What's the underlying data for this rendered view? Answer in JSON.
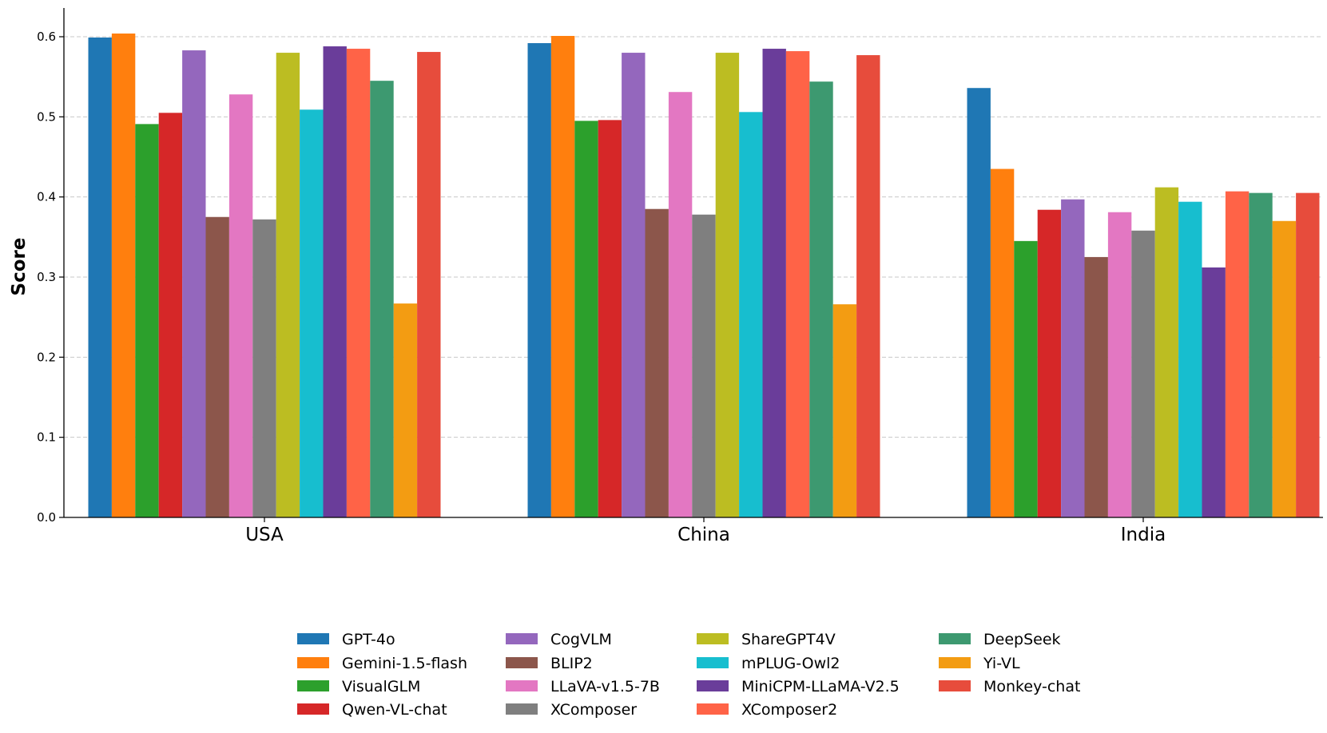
{
  "chart_data": {
    "type": "bar",
    "title": "",
    "xlabel": "",
    "ylabel": "Score",
    "ylim": [
      0,
      0.635
    ],
    "yticks": [
      "0.0",
      "0.1",
      "0.2",
      "0.3",
      "0.4",
      "0.5",
      "0.6"
    ],
    "categories": [
      "USA",
      "China",
      "India"
    ],
    "grid": "horizontal dashed",
    "legend_position": "bottom",
    "series": [
      {
        "name": "GPT-4o",
        "color": "#1f77b4",
        "values": [
          0.599,
          0.592,
          0.536
        ]
      },
      {
        "name": "Gemini-1.5-flash",
        "color": "#ff7f0e",
        "values": [
          0.604,
          0.601,
          0.435
        ]
      },
      {
        "name": "VisualGLM",
        "color": "#2ca02c",
        "values": [
          0.491,
          0.495,
          0.345
        ]
      },
      {
        "name": "Qwen-VL-chat",
        "color": "#d62728",
        "values": [
          0.505,
          0.496,
          0.384
        ]
      },
      {
        "name": "CogVLM",
        "color": "#9467bd",
        "values": [
          0.583,
          0.58,
          0.397
        ]
      },
      {
        "name": "BLIP2",
        "color": "#8c564b",
        "values": [
          0.375,
          0.385,
          0.325
        ]
      },
      {
        "name": "LLaVA-v1.5-7B",
        "color": "#e377c2",
        "values": [
          0.528,
          0.531,
          0.381
        ]
      },
      {
        "name": "XComposer",
        "color": "#7f7f7f",
        "values": [
          0.372,
          0.378,
          0.358
        ]
      },
      {
        "name": "ShareGPT4V",
        "color": "#bcbd22",
        "values": [
          0.58,
          0.58,
          0.412
        ]
      },
      {
        "name": "mPLUG-Owl2",
        "color": "#17becf",
        "values": [
          0.509,
          0.506,
          0.394
        ]
      },
      {
        "name": "MiniCPM-LLaMA-V2.5",
        "color": "#6a3d9a",
        "values": [
          0.588,
          0.585,
          0.312
        ]
      },
      {
        "name": "XComposer2",
        "color": "#ff6347",
        "values": [
          0.585,
          0.582,
          0.407
        ]
      },
      {
        "name": "DeepSeek",
        "color": "#3d9970",
        "values": [
          0.545,
          0.544,
          0.405
        ]
      },
      {
        "name": "Yi-VL",
        "color": "#f39c12",
        "values": [
          0.267,
          0.266,
          0.37
        ]
      },
      {
        "name": "Monkey-chat",
        "color": "#e74c3c",
        "values": [
          0.581,
          0.577,
          0.405
        ]
      }
    ]
  }
}
